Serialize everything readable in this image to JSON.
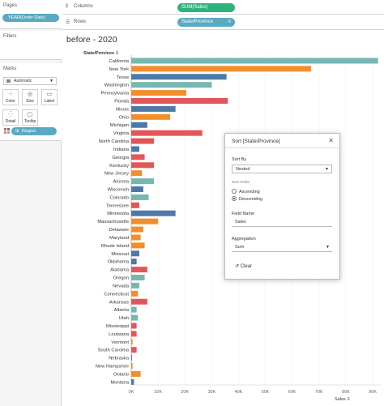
{
  "left_panel": {
    "pages": {
      "title": "Pages",
      "pill": "YEAR(Order Date)"
    },
    "filters": {
      "title": "Filters"
    },
    "marks": {
      "title": "Marks",
      "mark_type": "Automatic",
      "buttons": [
        {
          "label": "Color",
          "icon": "palette-icon"
        },
        {
          "label": "Size",
          "icon": "size-icon"
        },
        {
          "label": "Label",
          "icon": "label-icon"
        },
        {
          "label": "Detail",
          "icon": "detail-icon"
        },
        {
          "label": "Tooltip",
          "icon": "tooltip-icon"
        }
      ],
      "region_pill": "Region"
    }
  },
  "shelves": {
    "columns_label": "Columns",
    "columns_pill": "SUM(Sales)",
    "rows_label": "Rows",
    "rows_pill": "State/Province"
  },
  "chart_data": {
    "type": "bar",
    "title": "before - 2020",
    "row_header": "State/Province",
    "xlabel": "Sales",
    "xlim": [
      0,
      93000
    ],
    "x_ticks": [
      "0K",
      "10K",
      "20K",
      "30K",
      "40K",
      "50K",
      "60K",
      "70K",
      "80K",
      "90K"
    ],
    "colors": {
      "West": "#76b7b2",
      "East": "#e15759",
      "Central": "#f28e2b",
      "South": "#4e79a7"
    },
    "categories": [
      "California",
      "New York",
      "Texas",
      "Washington",
      "Pennsylvania",
      "Florida",
      "Illinois",
      "Ohio",
      "Michigan",
      "Virginia",
      "North Carolina",
      "Indiana",
      "Georgia",
      "Kentucky",
      "New Jersey",
      "Arizona",
      "Wisconsin",
      "Colorado",
      "Tennessee",
      "Minnesota",
      "Massachusetts",
      "Delaware",
      "Maryland",
      "Rhode Island",
      "Missouri",
      "Oklahoma",
      "Alabama",
      "Oregon",
      "Nevada",
      "Connecticut",
      "Arkansas",
      "Alberta",
      "Utah",
      "Mississippi",
      "Louisiana",
      "Vermont",
      "South Carolina",
      "Nebraska",
      "New Hampshire",
      "Ontario",
      "Montana"
    ],
    "values": [
      92000,
      67000,
      35500,
      30000,
      20500,
      36000,
      16500,
      14500,
      6000,
      26500,
      8500,
      3000,
      5000,
      8500,
      4000,
      8500,
      4500,
      6500,
      3000,
      16500,
      10000,
      4500,
      3500,
      5000,
      3000,
      2000,
      6000,
      5000,
      3000,
      2500,
      6000,
      2000,
      2500,
      2000,
      2000,
      500,
      2000,
      300,
      500,
      3500,
      1000
    ],
    "regions": [
      "West",
      "Central",
      "South",
      "West",
      "Central",
      "East",
      "South",
      "Central",
      "South",
      "East",
      "East",
      "South",
      "East",
      "East",
      "Central",
      "West",
      "South",
      "West",
      "East",
      "South",
      "Central",
      "Central",
      "Central",
      "Central",
      "South",
      "South",
      "East",
      "West",
      "West",
      "Central",
      "East",
      "West",
      "West",
      "East",
      "East",
      "Central",
      "East",
      "South",
      "Central",
      "Central",
      "South"
    ]
  },
  "sort_dialog": {
    "title": "Sort [State/Province]",
    "sort_by_label": "Sort By",
    "sort_by_value": "Nested",
    "sort_order_label": "Sort Order",
    "ascending": "Ascending",
    "descending": "Descending",
    "field_name_label": "Field Name",
    "field_name_value": "Sales",
    "aggregation_label": "Aggregation",
    "aggregation_value": "Sum",
    "clear_label": "Clear"
  }
}
